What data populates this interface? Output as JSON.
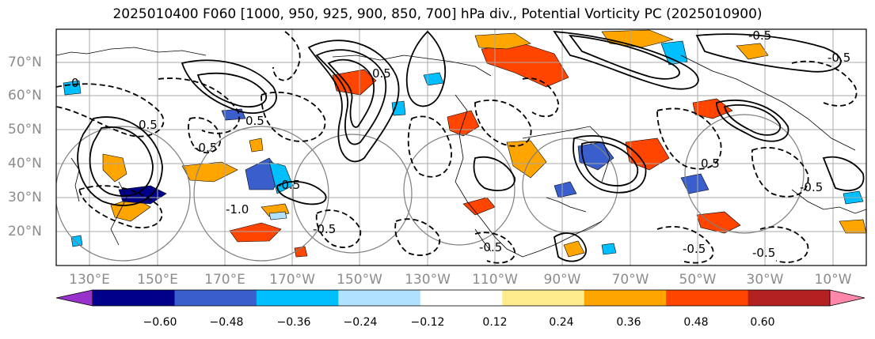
{
  "title": "2025010400 F060 [1000, 950, 925, 900, 850, 700] hPa div., Potential Vorticity PC (2025010900)",
  "lat_labels": [
    "70°N",
    "60°N",
    "50°N",
    "40°N",
    "30°N",
    "20°N"
  ],
  "lon_labels": [
    "130°E",
    "150°E",
    "170°E",
    "170°W",
    "150°W",
    "130°W",
    "110°W",
    "90°W",
    "70°W",
    "50°W",
    "30°W",
    "10°W"
  ],
  "contour_labels": [
    "0.5",
    "-0.5",
    "-0.5",
    "0.5",
    "0.5",
    "-0.5",
    "-1.0",
    "-0.5",
    "-0.5",
    "0.5",
    "-0.5",
    "-0.5",
    "-0.5",
    "0",
    "-0.5"
  ],
  "colorbar": {
    "ticks": [
      "−0.60",
      "−0.48",
      "−0.36",
      "−0.24",
      "−0.12",
      "0.12",
      "0.24",
      "0.36",
      "0.48",
      "0.60"
    ],
    "colors": [
      "#9932cc",
      "#00008b",
      "#3a5fcd",
      "#00bfff",
      "#b0e2ff",
      "#ffffff",
      "#ffeb8b",
      "#ffa500",
      "#ff4500",
      "#b22222",
      "#ff88aa"
    ]
  }
}
